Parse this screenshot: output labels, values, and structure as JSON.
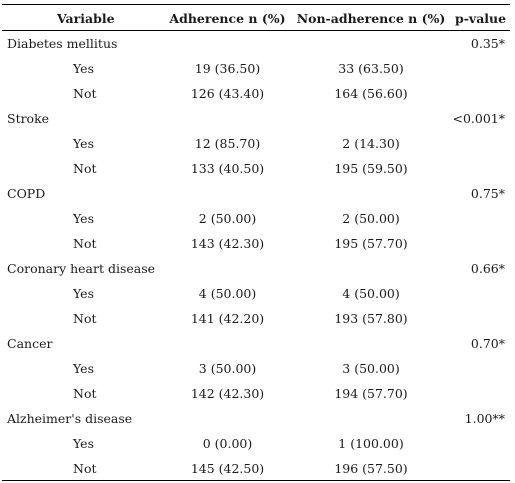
{
  "header": {
    "variable": "Variable",
    "adherence": "Adherence n (%)",
    "non_adherence": "Non-adherence n (%)",
    "p_value": "p-value"
  },
  "groups": [
    {
      "name": "Diabetes mellitus",
      "p": "0.35*",
      "rows": [
        {
          "label": "Yes",
          "adh": "19 (36.50)",
          "non": "33 (63.50)"
        },
        {
          "label": "Not",
          "adh": "126 (43.40)",
          "non": "164 (56.60)"
        }
      ]
    },
    {
      "name": "Stroke",
      "p": "<0.001*",
      "rows": [
        {
          "label": "Yes",
          "adh": "12 (85.70)",
          "non": "2 (14.30)"
        },
        {
          "label": "Not",
          "adh": "133 (40.50)",
          "non": "195 (59.50)"
        }
      ]
    },
    {
      "name": "COPD",
      "p": "0.75*",
      "rows": [
        {
          "label": "Yes",
          "adh": "2 (50.00)",
          "non": "2 (50.00)"
        },
        {
          "label": "Not",
          "adh": "143 (42.30)",
          "non": "195 (57.70)"
        }
      ]
    },
    {
      "name": "Coronary heart disease",
      "p": "0.66*",
      "rows": [
        {
          "label": "Yes",
          "adh": "4 (50.00)",
          "non": "4 (50.00)"
        },
        {
          "label": "Not",
          "adh": "141 (42.20)",
          "non": "193 (57.80)"
        }
      ]
    },
    {
      "name": "Cancer",
      "p": "0.70*",
      "rows": [
        {
          "label": "Yes",
          "adh": "3 (50.00)",
          "non": "3 (50.00)"
        },
        {
          "label": "Not",
          "adh": "142 (42.30)",
          "non": "194 (57.70)"
        }
      ]
    },
    {
      "name": "Alzheimer's disease",
      "p": "1.00**",
      "rows": [
        {
          "label": "Yes",
          "adh": "0 (0.00)",
          "non": "1 (100.00)"
        },
        {
          "label": "Not",
          "adh": "145 (42.50)",
          "non": "196 (57.50)"
        }
      ]
    }
  ]
}
